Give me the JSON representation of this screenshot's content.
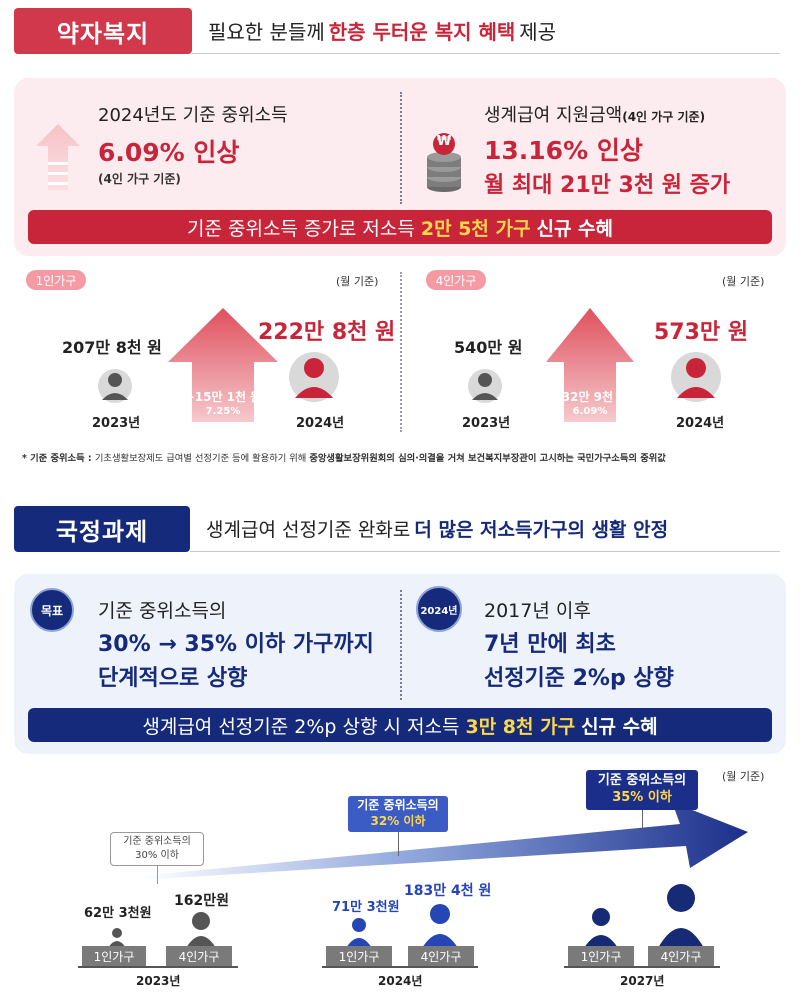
{
  "welfare": {
    "tag": "약자복지",
    "headline_pre": "필요한 분들께 ",
    "headline_em": "한층 두터운 복지 혜택",
    "headline_post": " 제공",
    "left_title": "2024년도 기준 중위소득",
    "left_big": "6.09% 인상",
    "left_note": "(4인 가구 기준)",
    "right_title": "생계급여 지원금액",
    "right_title_note": "(4인 가구 기준)",
    "right_big1": "13.16% 인상",
    "right_big2": "월 최대 21만 3천 원 증가",
    "coin_symbol": "₩",
    "banner_pre": "기준 중위소득 증가로 저소득 ",
    "banner_em": "2만 5천 가구",
    "banner_post": " 신규 수혜",
    "one_person": {
      "tag": "1인가구",
      "unit": "(월 기준)",
      "amount_2023": "207만 8천 원",
      "amount_2024": "222만 8천 원",
      "increase": "+15만 1천 원",
      "rate": "7.25%",
      "year_2023": "2023년",
      "year_2024": "2024년"
    },
    "four_person": {
      "tag": "4인가구",
      "unit": "(월 기준)",
      "amount_2023": "540만 원",
      "amount_2024": "573만 원",
      "increase": "+32만 9천 원",
      "rate": "6.09%",
      "year_2023": "2023년",
      "year_2024": "2024년"
    },
    "footnote_label": "* 기준 중위소득 : ",
    "footnote_text": "기초생활보장제도 급여별 선정기준 등에 활용하기 위해 ",
    "footnote_em": "중앙생활보장위원회의 심의·의결을 거쳐 보건복지부장관이 고시하는 국민가구소득의 중위값"
  },
  "national": {
    "tag": "국정과제",
    "headline_pre": "생계급여 선정기준 완화로 ",
    "headline_em": "더 많은 저소득가구의 생활 안정",
    "goal_badge": "목표",
    "goal_line1": "기준 중위소득의",
    "goal_line2": "30% → 35% 이하 가구까지",
    "goal_line3": "단계적으로 상향",
    "year_badge": "2024년",
    "right_line1": "2017년 이후",
    "right_line2": "7년 만에 최초",
    "right_line3": "선정기준 2%p 상향",
    "banner_pre": "생계급여 선정기준 2%p 상향 시 저소득 ",
    "banner_em": "3만 8천 가구",
    "banner_post": " 신규 수혜",
    "unit": "(월 기준)",
    "callout_2023_l1": "기준 중위소득의",
    "callout_2023_l2": "30% 이하",
    "callout_2024_l1": "기준 중위소득의",
    "callout_2024_l2": "32% 이하",
    "callout_2027_l1": "기준 중위소득의",
    "callout_2027_l2": "35% 이하",
    "y2023": {
      "one": "62만 3천원",
      "four": "162만원",
      "one_label": "1인가구",
      "four_label": "4인가구",
      "year": "2023년"
    },
    "y2024": {
      "one": "71만 3천원",
      "four": "183만 4천 원",
      "one_label": "1인가구",
      "four_label": "4인가구",
      "year": "2024년"
    },
    "y2027": {
      "one_label": "1인가구",
      "four_label": "4인가구",
      "year": "2027년"
    }
  },
  "colors": {
    "red": "#c9253a",
    "navy": "#152a7a",
    "pink_bg": "#fcecef",
    "blue_bg": "#eef3fb"
  }
}
